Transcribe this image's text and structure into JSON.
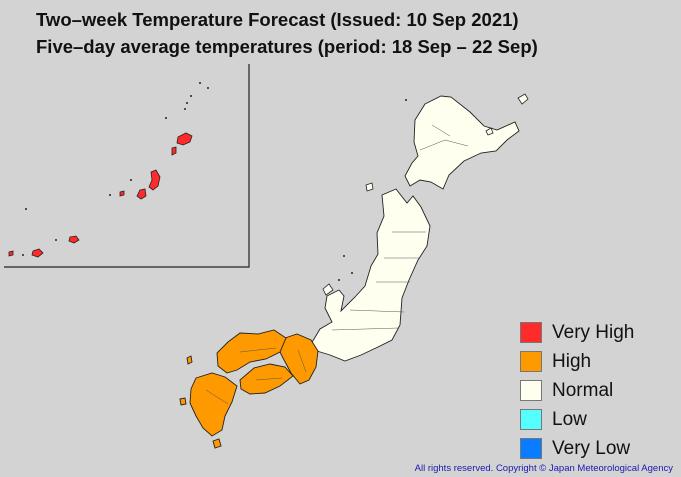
{
  "title_line1": "Two–week Temperature Forecast (Issued: 10 Sep 2021)",
  "title_line2": "Five–day average temperatures (period: 18 Sep – 22 Sep)",
  "legend": [
    {
      "label": "Very High",
      "color": "#ff2a2a"
    },
    {
      "label": "High",
      "color": "#ff9900"
    },
    {
      "label": "Normal",
      "color": "#fffff0"
    },
    {
      "label": "Low",
      "color": "#55ffff"
    },
    {
      "label": "Very Low",
      "color": "#0a7cff"
    }
  ],
  "region_categories": {
    "okinawa_islands": "Very High",
    "western_japan": "High",
    "eastern_and_northern_japan": "Normal"
  },
  "copyright": "All rights reserved. Copyright © Japan Meteorological Agency"
}
